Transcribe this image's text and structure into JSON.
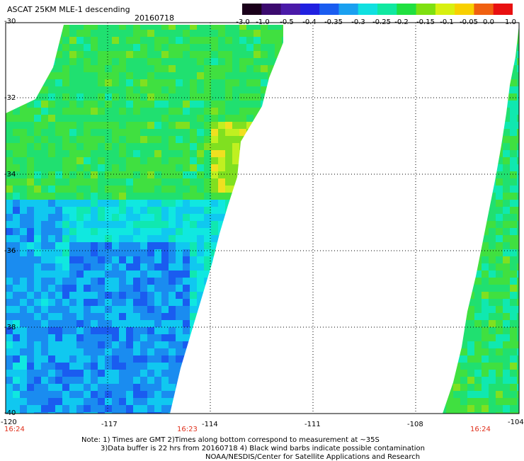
{
  "header": {
    "title": "ASCAT 25KM MLE-1 descending",
    "date": "20160718"
  },
  "colorbar": {
    "tick_labels": [
      "-3.0",
      "-1.0",
      "-0.5",
      "-0.4",
      "-0.35",
      "-0.3",
      "-0.25",
      "-0.2",
      "-0.15",
      "-0.1",
      "-0.05",
      "0.0",
      "1.0"
    ],
    "colors": [
      "#1a001a",
      "#3b0a6e",
      "#4a1aa8",
      "#2020e0",
      "#1a5cf0",
      "#1aa0f0",
      "#10e0e0",
      "#10e8a0",
      "#20e040",
      "#7ee010",
      "#d8f010",
      "#f8d000",
      "#f06010",
      "#e81010"
    ]
  },
  "axes": {
    "y_labels": [
      "-30",
      "-32",
      "-34",
      "-36",
      "-38",
      "-40"
    ],
    "x_labels": [
      "-120",
      "-117",
      "-114",
      "-111",
      "-108",
      "-104"
    ],
    "time_labels": [
      "16:24",
      "16:23",
      "16:24"
    ],
    "time_color": "#e0301c"
  },
  "notes": {
    "line1": "Note: 1) Times are GMT 2)Times along bottom correspond to measurement at ~35S",
    "line2": "3)Data buffer is 22 hrs from 20160718 4) Black wind barbs indicate possible contamination",
    "line3": "NOAA/NESDIS/Center for Satellite Applications and Research"
  }
}
